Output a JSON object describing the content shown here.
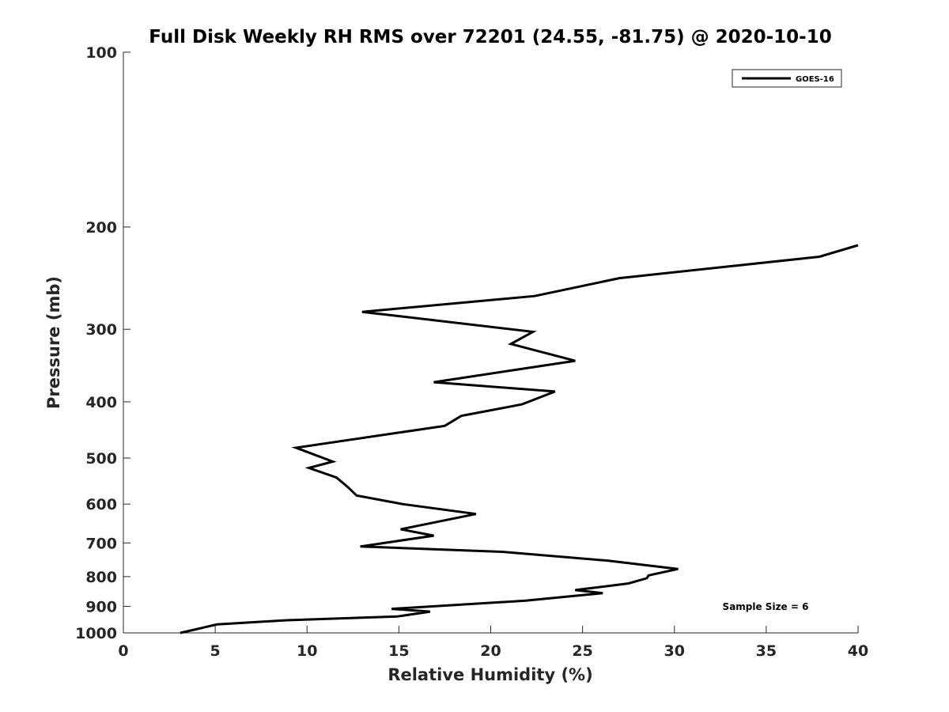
{
  "chart_data": {
    "type": "line",
    "title": "Full Disk Weekly RH RMS over 72201 (24.55, -81.75) @ 2020-10-10",
    "xlabel": "Relative Humidity (%)",
    "ylabel": "Pressure (mb)",
    "xlim": [
      0,
      40
    ],
    "ylim": [
      100,
      1000
    ],
    "yscale": "log",
    "y_reversed": true,
    "xticks": [
      0,
      5,
      10,
      15,
      20,
      25,
      30,
      35,
      40
    ],
    "yticks": [
      100,
      200,
      300,
      400,
      500,
      600,
      700,
      800,
      900,
      1000
    ],
    "grid": false,
    "legend_position": "top-right",
    "annotation": "Sample Size = 6",
    "series": [
      {
        "name": "GOES-16",
        "color": "#000000",
        "points": [
          [
            40.0,
            215
          ],
          [
            37.9,
            225
          ],
          [
            27.0,
            245
          ],
          [
            22.4,
            263
          ],
          [
            13.0,
            280
          ],
          [
            22.3,
            303
          ],
          [
            21.1,
            318
          ],
          [
            24.6,
            340
          ],
          [
            16.9,
            370
          ],
          [
            23.5,
            384
          ],
          [
            21.7,
            404
          ],
          [
            18.4,
            423
          ],
          [
            17.5,
            440
          ],
          [
            9.4,
            480
          ],
          [
            11.4,
            507
          ],
          [
            10.1,
            520
          ],
          [
            11.6,
            540
          ],
          [
            12.2,
            560
          ],
          [
            12.7,
            580
          ],
          [
            15.2,
            600
          ],
          [
            19.2,
            624
          ],
          [
            15.1,
            663
          ],
          [
            16.9,
            680
          ],
          [
            12.9,
            710
          ],
          [
            20.6,
            725
          ],
          [
            26.4,
            751
          ],
          [
            30.2,
            776
          ],
          [
            28.6,
            796
          ],
          [
            28.5,
            805
          ],
          [
            27.5,
            822
          ],
          [
            24.6,
            844
          ],
          [
            26.1,
            854
          ],
          [
            21.9,
            880
          ],
          [
            14.6,
            909
          ],
          [
            16.7,
            919
          ],
          [
            14.9,
            937
          ],
          [
            8.9,
            951
          ],
          [
            5.1,
            967
          ],
          [
            3.1,
            1000
          ]
        ]
      }
    ]
  }
}
